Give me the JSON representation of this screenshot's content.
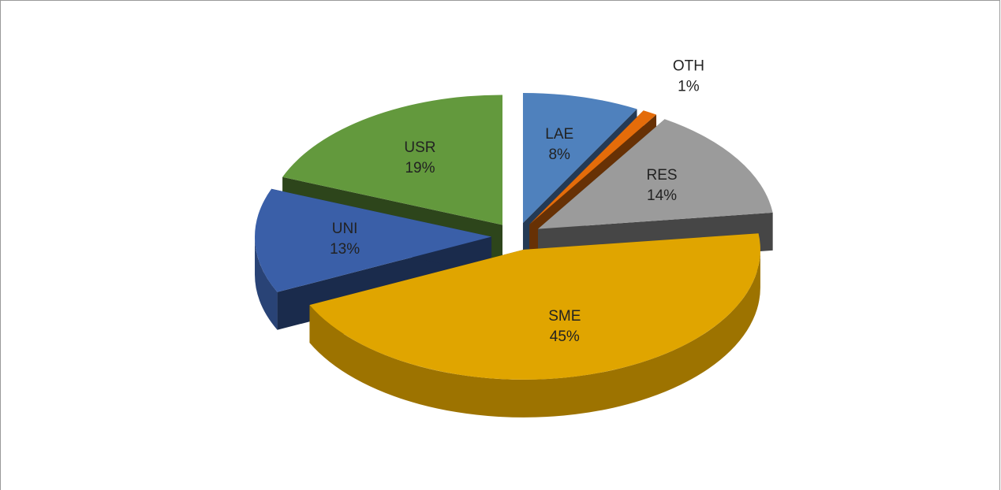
{
  "chart_data": {
    "type": "pie3d",
    "categories": [
      "LAE",
      "OTH",
      "RES",
      "SME",
      "UNI",
      "USR"
    ],
    "values": [
      8,
      1,
      14,
      45,
      13,
      19
    ],
    "value_labels": [
      "8%",
      "1%",
      "14%",
      "45%",
      "13%",
      "19%"
    ],
    "colors": [
      "#4f81bd",
      "#e46c0a",
      "#9b9b9b",
      "#e0a500",
      "#3a5fa8",
      "#63993d"
    ]
  }
}
